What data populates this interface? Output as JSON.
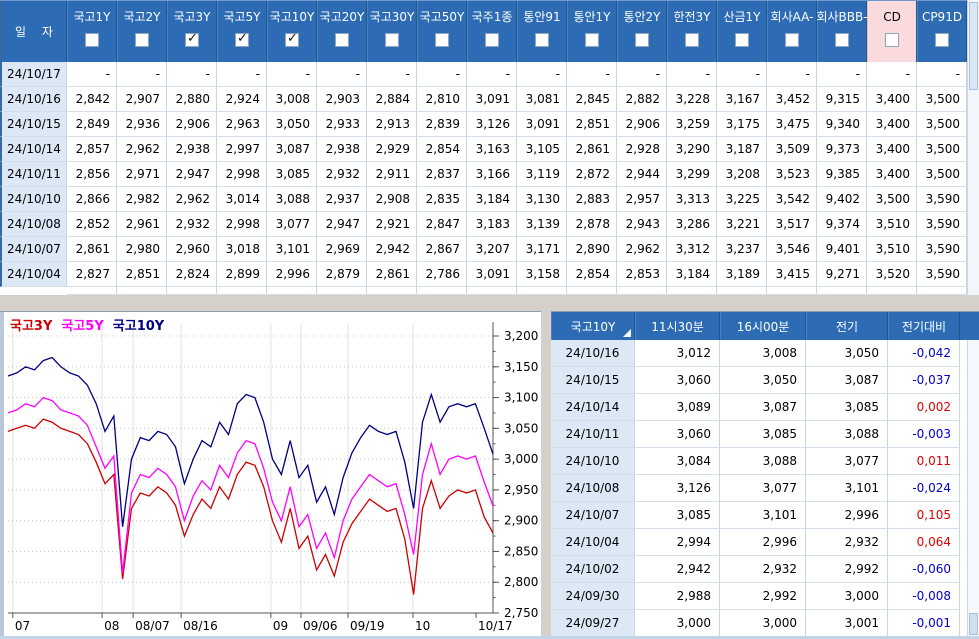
{
  "top_table": {
    "date_header": "일 자",
    "columns": [
      {
        "label": "국고1Y",
        "checked": false
      },
      {
        "label": "국고2Y",
        "checked": false
      },
      {
        "label": "국고3Y",
        "checked": true
      },
      {
        "label": "국고5Y",
        "checked": true
      },
      {
        "label": "국고10Y",
        "checked": true
      },
      {
        "label": "국고20Y",
        "checked": false
      },
      {
        "label": "국고30Y",
        "checked": false
      },
      {
        "label": "국고50Y",
        "checked": false
      },
      {
        "label": "국주1종",
        "checked": false
      },
      {
        "label": "통안91",
        "checked": false
      },
      {
        "label": "통안1Y",
        "checked": false
      },
      {
        "label": "통안2Y",
        "checked": false
      },
      {
        "label": "한전3Y",
        "checked": false
      },
      {
        "label": "산금1Y",
        "checked": false
      },
      {
        "label": "회사AA-",
        "checked": false
      },
      {
        "label": "회사BBB-",
        "checked": false
      },
      {
        "label": "CD",
        "checked": false,
        "highlight": true
      },
      {
        "label": "CP91D",
        "checked": false
      }
    ],
    "rows": [
      {
        "date": "24/10/17",
        "values": [
          "-",
          "-",
          "-",
          "-",
          "-",
          "-",
          "-",
          "-",
          "-",
          "-",
          "-",
          "-",
          "-",
          "-",
          "-",
          "-",
          "-",
          "-"
        ]
      },
      {
        "date": "24/10/16",
        "values": [
          "2,842",
          "2,907",
          "2,880",
          "2,924",
          "3,008",
          "2,903",
          "2,884",
          "2,810",
          "3,091",
          "3,081",
          "2,845",
          "2,882",
          "3,228",
          "3,167",
          "3,452",
          "9,315",
          "3,400",
          "3,500"
        ]
      },
      {
        "date": "24/10/15",
        "values": [
          "2,849",
          "2,936",
          "2,906",
          "2,963",
          "3,050",
          "2,933",
          "2,913",
          "2,839",
          "3,126",
          "3,091",
          "2,851",
          "2,906",
          "3,259",
          "3,175",
          "3,475",
          "9,340",
          "3,400",
          "3,500"
        ]
      },
      {
        "date": "24/10/14",
        "values": [
          "2,857",
          "2,962",
          "2,938",
          "2,997",
          "3,087",
          "2,938",
          "2,929",
          "2,854",
          "3,163",
          "3,105",
          "2,861",
          "2,928",
          "3,290",
          "3,187",
          "3,509",
          "9,373",
          "3,400",
          "3,500"
        ]
      },
      {
        "date": "24/10/11",
        "values": [
          "2,856",
          "2,971",
          "2,947",
          "2,998",
          "3,085",
          "2,932",
          "2,911",
          "2,837",
          "3,166",
          "3,119",
          "2,872",
          "2,944",
          "3,299",
          "3,208",
          "3,523",
          "9,385",
          "3,400",
          "3,500"
        ]
      },
      {
        "date": "24/10/10",
        "values": [
          "2,866",
          "2,982",
          "2,962",
          "3,014",
          "3,088",
          "2,937",
          "2,908",
          "2,835",
          "3,184",
          "3,130",
          "2,883",
          "2,957",
          "3,313",
          "3,225",
          "3,542",
          "9,402",
          "3,500",
          "3,590"
        ]
      },
      {
        "date": "24/10/08",
        "values": [
          "2,852",
          "2,961",
          "2,932",
          "2,998",
          "3,077",
          "2,947",
          "2,921",
          "2,847",
          "3,183",
          "3,139",
          "2,878",
          "2,943",
          "3,286",
          "3,221",
          "3,517",
          "9,374",
          "3,510",
          "3,590"
        ]
      },
      {
        "date": "24/10/07",
        "values": [
          "2,861",
          "2,980",
          "2,960",
          "3,018",
          "3,101",
          "2,969",
          "2,942",
          "2,867",
          "3,207",
          "3,171",
          "2,890",
          "2,962",
          "3,312",
          "3,237",
          "3,546",
          "9,401",
          "3,510",
          "3,590"
        ]
      },
      {
        "date": "24/10/04",
        "values": [
          "2,827",
          "2,851",
          "2,824",
          "2,899",
          "2,996",
          "2,879",
          "2,861",
          "2,786",
          "3,091",
          "3,158",
          "2,854",
          "2,853",
          "3,184",
          "3,189",
          "3,415",
          "9,271",
          "3,520",
          "3,590"
        ]
      }
    ]
  },
  "chart_data": {
    "type": "line",
    "title": "",
    "ylim": [
      2.75,
      3.2
    ],
    "grid": true,
    "legend_position": "top-left",
    "y_ticks": [
      {
        "label": "3,200",
        "v": 3.2
      },
      {
        "label": "3,150",
        "v": 3.15
      },
      {
        "label": "3,100",
        "v": 3.1
      },
      {
        "label": "3,050",
        "v": 3.05
      },
      {
        "label": "3,000",
        "v": 3.0
      },
      {
        "label": "2,950",
        "v": 2.95
      },
      {
        "label": "2,900",
        "v": 2.9
      },
      {
        "label": "2,850",
        "v": 2.85
      },
      {
        "label": "2,800",
        "v": 2.8
      },
      {
        "label": "2,750",
        "v": 2.75
      }
    ],
    "x_ticks": [
      {
        "label": "07",
        "f": 0.01,
        "grid": true
      },
      {
        "label": "08",
        "f": 0.194,
        "grid": true
      },
      {
        "label": "08/07",
        "f": 0.258,
        "grid": true
      },
      {
        "label": "08/16",
        "f": 0.357,
        "grid": true
      },
      {
        "label": "09",
        "f": 0.542,
        "grid": true
      },
      {
        "label": "09/06",
        "f": 0.604,
        "grid": true
      },
      {
        "label": "09/19",
        "f": 0.701,
        "grid": true
      },
      {
        "label": "10",
        "f": 0.835,
        "grid": true
      },
      {
        "label": "10/17",
        "f": 0.965,
        "grid": false
      }
    ],
    "series": [
      {
        "name": "국고3Y",
        "color": "#cc0000",
        "values": [
          3.045,
          3.05,
          3.055,
          3.05,
          3.065,
          3.06,
          3.05,
          3.045,
          3.04,
          3.025,
          2.995,
          2.96,
          2.975,
          2.805,
          2.92,
          2.945,
          2.94,
          2.955,
          2.945,
          2.925,
          2.875,
          2.91,
          2.935,
          2.92,
          2.955,
          2.935,
          2.975,
          2.995,
          2.99,
          2.955,
          2.9,
          2.865,
          2.92,
          2.855,
          2.875,
          2.82,
          2.845,
          2.81,
          2.865,
          2.895,
          2.915,
          2.935,
          2.925,
          2.915,
          2.92,
          2.87,
          2.78,
          2.92,
          2.965,
          2.92,
          2.94,
          2.95,
          2.945,
          2.95,
          2.906,
          2.88
        ]
      },
      {
        "name": "국고5Y",
        "color": "#ff00ff",
        "values": [
          3.075,
          3.08,
          3.09,
          3.085,
          3.1,
          3.095,
          3.08,
          3.075,
          3.07,
          3.055,
          3.02,
          2.985,
          3.005,
          2.815,
          2.945,
          2.975,
          2.97,
          2.985,
          2.975,
          2.955,
          2.9,
          2.94,
          2.965,
          2.95,
          2.99,
          2.97,
          3.01,
          3.03,
          3.025,
          2.985,
          2.93,
          2.9,
          2.955,
          2.89,
          2.91,
          2.855,
          2.88,
          2.84,
          2.9,
          2.935,
          2.955,
          2.975,
          2.965,
          2.955,
          2.96,
          2.91,
          2.845,
          2.975,
          3.025,
          2.975,
          3.0,
          3.005,
          3.0,
          3.005,
          2.963,
          2.924
        ]
      },
      {
        "name": "국고10Y",
        "color": "#000080",
        "values": [
          3.135,
          3.14,
          3.15,
          3.145,
          3.16,
          3.165,
          3.15,
          3.14,
          3.135,
          3.12,
          3.09,
          3.045,
          3.07,
          2.89,
          3.0,
          3.035,
          3.03,
          3.045,
          3.04,
          3.02,
          2.96,
          3.0,
          3.03,
          3.02,
          3.06,
          3.04,
          3.09,
          3.105,
          3.1,
          3.06,
          3.0,
          2.975,
          3.03,
          2.97,
          2.99,
          2.93,
          2.955,
          2.91,
          2.97,
          3.01,
          3.035,
          3.055,
          3.045,
          3.04,
          3.045,
          2.995,
          2.92,
          3.06,
          3.105,
          3.06,
          3.085,
          3.09,
          3.085,
          3.09,
          3.05,
          3.008
        ]
      }
    ]
  },
  "right_table": {
    "columns": [
      "국고10Y",
      "11시30분",
      "16시00분",
      "전기",
      "전기대비"
    ],
    "rows": [
      {
        "date": "24/10/16",
        "t1130": "3,012",
        "t1600": "3,008",
        "prev": "3,050",
        "chg": "-0,042"
      },
      {
        "date": "24/10/15",
        "t1130": "3,060",
        "t1600": "3,050",
        "prev": "3,087",
        "chg": "-0,037"
      },
      {
        "date": "24/10/14",
        "t1130": "3,089",
        "t1600": "3,087",
        "prev": "3,085",
        "chg": "0,002"
      },
      {
        "date": "24/10/11",
        "t1130": "3,060",
        "t1600": "3,085",
        "prev": "3,088",
        "chg": "-0,003"
      },
      {
        "date": "24/10/10",
        "t1130": "3,084",
        "t1600": "3,088",
        "prev": "3,077",
        "chg": "0,011"
      },
      {
        "date": "24/10/08",
        "t1130": "3,126",
        "t1600": "3,077",
        "prev": "3,101",
        "chg": "-0,024"
      },
      {
        "date": "24/10/07",
        "t1130": "3,085",
        "t1600": "3,101",
        "prev": "2,996",
        "chg": "0,105"
      },
      {
        "date": "24/10/04",
        "t1130": "2,994",
        "t1600": "2,996",
        "prev": "2,932",
        "chg": "0,064"
      },
      {
        "date": "24/10/02",
        "t1130": "2,942",
        "t1600": "2,932",
        "prev": "2,992",
        "chg": "-0,060"
      },
      {
        "date": "24/09/30",
        "t1130": "2,988",
        "t1600": "2,992",
        "prev": "3,000",
        "chg": "-0,008"
      },
      {
        "date": "24/09/27",
        "t1130": "3,000",
        "t1600": "3,000",
        "prev": "3,001",
        "chg": "-0,001"
      }
    ]
  }
}
